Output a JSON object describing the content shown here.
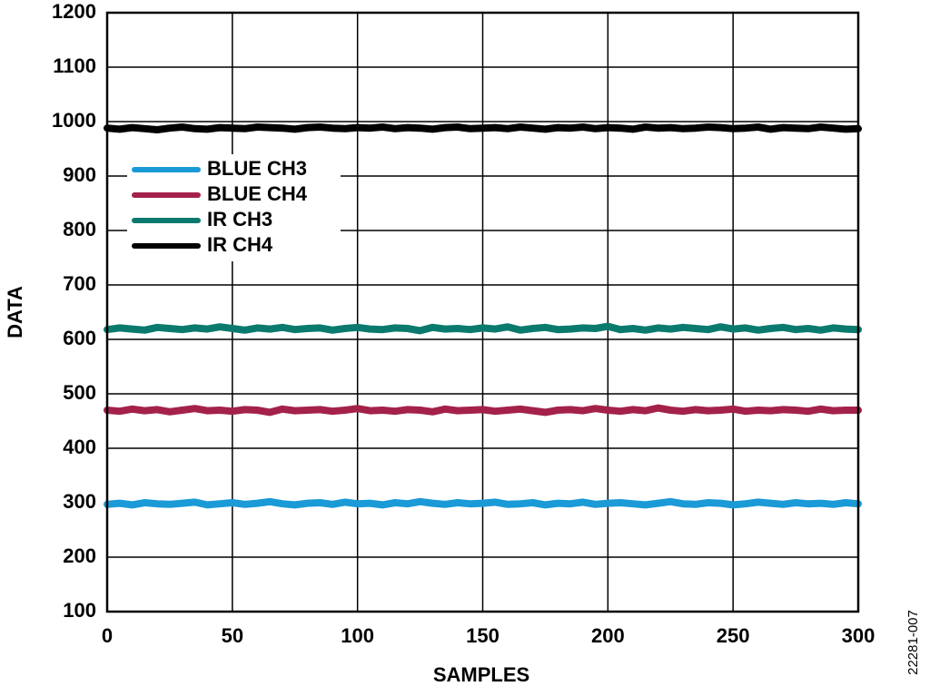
{
  "chart_data": {
    "type": "line",
    "xlabel": "SAMPLES",
    "ylabel": "DATA",
    "figure_id": "22281-007",
    "x": [
      0,
      5,
      10,
      15,
      20,
      25,
      30,
      35,
      40,
      45,
      50,
      55,
      60,
      65,
      70,
      75,
      80,
      85,
      90,
      95,
      100,
      105,
      110,
      115,
      120,
      125,
      130,
      135,
      140,
      145,
      150,
      155,
      160,
      165,
      170,
      175,
      180,
      185,
      190,
      195,
      200,
      205,
      210,
      215,
      220,
      225,
      230,
      235,
      240,
      245,
      250,
      255,
      260,
      265,
      270,
      275,
      280,
      285,
      290,
      295,
      300
    ],
    "series": [
      {
        "name": "BLUE CH3",
        "color": "#1a9ad6",
        "values": [
          297,
          299,
          296,
          300,
          298,
          297,
          299,
          301,
          296,
          298,
          300,
          297,
          299,
          302,
          298,
          296,
          299,
          300,
          297,
          301,
          298,
          299,
          296,
          300,
          298,
          302,
          299,
          297,
          300,
          298,
          299,
          301,
          297,
          298,
          300,
          296,
          299,
          298,
          301,
          297,
          299,
          300,
          298,
          296,
          299,
          302,
          298,
          297,
          300,
          299,
          296,
          298,
          301,
          299,
          297,
          300,
          298,
          299,
          297,
          300,
          298
        ]
      },
      {
        "name": "BLUE CH4",
        "color": "#a4224a",
        "values": [
          470,
          468,
          472,
          469,
          471,
          467,
          470,
          473,
          469,
          470,
          468,
          471,
          470,
          466,
          472,
          469,
          470,
          471,
          468,
          470,
          473,
          469,
          470,
          468,
          471,
          470,
          467,
          472,
          469,
          470,
          471,
          468,
          470,
          472,
          469,
          466,
          470,
          471,
          469,
          473,
          470,
          468,
          471,
          469,
          474,
          470,
          468,
          471,
          469,
          470,
          472,
          468,
          470,
          469,
          471,
          470,
          468,
          472,
          469,
          470,
          470
        ]
      },
      {
        "name": "IR CH3",
        "color": "#0b7a6e",
        "values": [
          618,
          621,
          619,
          617,
          622,
          620,
          618,
          621,
          619,
          623,
          620,
          617,
          621,
          619,
          622,
          618,
          620,
          621,
          617,
          620,
          622,
          619,
          618,
          621,
          620,
          616,
          622,
          619,
          620,
          618,
          621,
          619,
          623,
          617,
          620,
          622,
          618,
          619,
          621,
          620,
          624,
          618,
          620,
          617,
          621,
          619,
          622,
          620,
          618,
          623,
          619,
          621,
          617,
          620,
          622,
          618,
          620,
          617,
          621,
          619,
          618
        ]
      },
      {
        "name": "IR CH4",
        "color": "#000000",
        "values": [
          988,
          986,
          989,
          987,
          985,
          988,
          990,
          987,
          986,
          989,
          988,
          987,
          990,
          989,
          988,
          986,
          989,
          990,
          988,
          987,
          989,
          988,
          990,
          987,
          989,
          988,
          986,
          989,
          990,
          987,
          988,
          989,
          987,
          990,
          988,
          986,
          989,
          988,
          990,
          987,
          989,
          988,
          986,
          990,
          988,
          989,
          987,
          988,
          990,
          989,
          987,
          988,
          990,
          986,
          989,
          988,
          987,
          990,
          988,
          986,
          987
        ]
      }
    ],
    "xlim": [
      0,
      300
    ],
    "xticks": [
      0,
      50,
      100,
      150,
      200,
      250,
      300
    ],
    "ylim": [
      100,
      1200
    ],
    "yticks": [
      100,
      200,
      300,
      400,
      500,
      600,
      700,
      800,
      900,
      1000,
      1100,
      1200
    ],
    "grid": true,
    "legend": "upper left"
  }
}
